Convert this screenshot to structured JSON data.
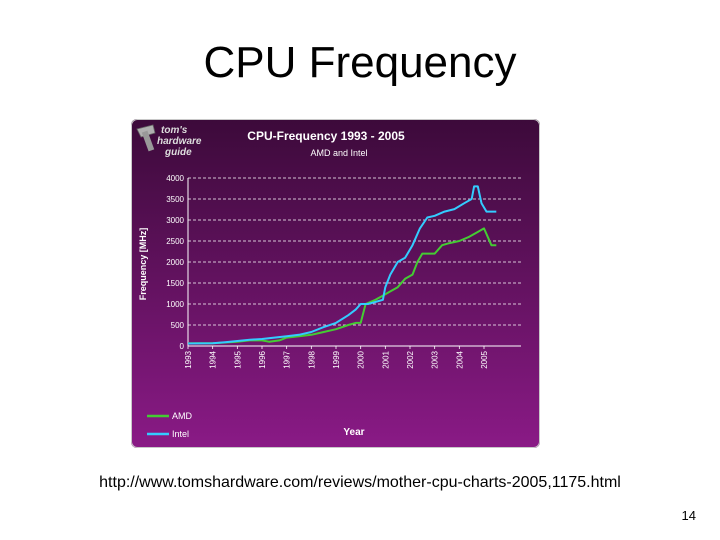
{
  "slide": {
    "title": "CPU Frequency",
    "source_url": "http://www.tomshardware.com/reviews/mother-cpu-charts-2005,1175.html",
    "page_number": "14"
  },
  "logo": {
    "text_line1": "tom's",
    "text_line2": "hardware",
    "text_line3": "guide"
  },
  "colors": {
    "background_top": "#3c0a3a",
    "background_bottom": "#8a1a86",
    "amd": "#44cc33",
    "intel": "#33ccff",
    "axis_text": "#ffffff"
  },
  "chart_data": {
    "type": "line",
    "title": "CPU-Frequency 1993 - 2005",
    "subtitle": "AMD and Intel",
    "xlabel": "Year",
    "ylabel": "Frequency [MHz]",
    "ylim": [
      0,
      4000
    ],
    "xlim": [
      1993,
      2006.5
    ],
    "yticks": [
      0,
      500,
      1000,
      1500,
      2000,
      2500,
      3000,
      3500,
      4000
    ],
    "xticks": [
      {
        "value": 1993,
        "label": "1993"
      },
      {
        "value": 1994,
        "label": "1994"
      },
      {
        "value": 1995,
        "label": "1995"
      },
      {
        "value": 1996,
        "label": "1996"
      },
      {
        "value": 1997,
        "label": "1997"
      },
      {
        "value": 1998,
        "label": "1998"
      },
      {
        "value": 1999,
        "label": "1999"
      },
      {
        "value": 2000,
        "label": "2000"
      },
      {
        "value": 2001,
        "label": "2001"
      },
      {
        "value": 2002,
        "label": "2002"
      },
      {
        "value": 2003,
        "label": "2003"
      },
      {
        "value": 2004,
        "label": "2004"
      },
      {
        "value": 2005,
        "label": "2005"
      }
    ],
    "grid": "horizontal-dashed",
    "legend_position": "bottom-left",
    "series": [
      {
        "name": "AMD",
        "color": "#44cc33",
        "points": [
          [
            1993.0,
            66
          ],
          [
            1994.0,
            66
          ],
          [
            1995.0,
            100
          ],
          [
            1995.5,
            133
          ],
          [
            1996.0,
            133
          ],
          [
            1996.3,
            100
          ],
          [
            1996.7,
            133
          ],
          [
            1997.0,
            200
          ],
          [
            1997.5,
            233
          ],
          [
            1998.0,
            266
          ],
          [
            1998.5,
            333
          ],
          [
            1999.0,
            400
          ],
          [
            1999.5,
            500
          ],
          [
            1999.8,
            550
          ],
          [
            2000.0,
            550
          ],
          [
            2000.2,
            1000
          ],
          [
            2000.6,
            1100
          ],
          [
            2000.9,
            1200
          ],
          [
            2001.2,
            1300
          ],
          [
            2001.5,
            1400
          ],
          [
            2001.8,
            1600
          ],
          [
            2002.1,
            1700
          ],
          [
            2002.3,
            2000
          ],
          [
            2002.5,
            2200
          ],
          [
            2002.8,
            2200
          ],
          [
            2003.0,
            2200
          ],
          [
            2003.3,
            2400
          ],
          [
            2003.6,
            2450
          ],
          [
            2004.0,
            2500
          ],
          [
            2004.4,
            2600
          ],
          [
            2004.7,
            2700
          ],
          [
            2005.0,
            2800
          ],
          [
            2005.15,
            2600
          ],
          [
            2005.3,
            2400
          ],
          [
            2005.5,
            2400
          ]
        ]
      },
      {
        "name": "Intel",
        "color": "#33ccff",
        "points": [
          [
            1993.0,
            60
          ],
          [
            1994.0,
            66
          ],
          [
            1994.5,
            90
          ],
          [
            1995.0,
            120
          ],
          [
            1995.5,
            150
          ],
          [
            1996.0,
            166
          ],
          [
            1996.5,
            200
          ],
          [
            1997.0,
            233
          ],
          [
            1997.5,
            266
          ],
          [
            1998.0,
            333
          ],
          [
            1998.5,
            450
          ],
          [
            1999.0,
            550
          ],
          [
            1999.5,
            733
          ],
          [
            1999.8,
            866
          ],
          [
            2000.0,
            1000
          ],
          [
            2000.3,
            1000
          ],
          [
            2000.6,
            1050
          ],
          [
            2000.9,
            1100
          ],
          [
            2001.0,
            1400
          ],
          [
            2001.2,
            1700
          ],
          [
            2001.5,
            2000
          ],
          [
            2001.8,
            2100
          ],
          [
            2002.1,
            2400
          ],
          [
            2002.4,
            2800
          ],
          [
            2002.7,
            3060
          ],
          [
            2003.0,
            3100
          ],
          [
            2003.4,
            3200
          ],
          [
            2003.8,
            3260
          ],
          [
            2004.2,
            3400
          ],
          [
            2004.5,
            3500
          ],
          [
            2004.6,
            3800
          ],
          [
            2004.75,
            3800
          ],
          [
            2004.9,
            3400
          ],
          [
            2005.1,
            3200
          ],
          [
            2005.3,
            3200
          ],
          [
            2005.5,
            3200
          ]
        ]
      }
    ]
  }
}
